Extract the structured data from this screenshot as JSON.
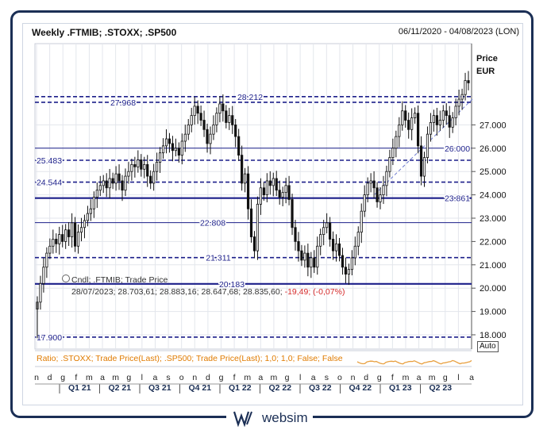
{
  "header": {
    "title": "Weekly .FTMIB; .STOXX; .SP500",
    "date_range": "06/11/2020 - 04/08/2023 (LON)",
    "price_label": "Price",
    "currency_label": "EUR"
  },
  "info": {
    "prefix": "Cndl; .FTMIB; Trade Price",
    "values": "28/07/2023; 28.703,61; 28.883,16; 28.647,68; 28.835,60;",
    "change": "-19,49; (-0,07%)"
  },
  "ratio_label": "Ratio; .STOXX; Trade Price(Last); .SP500; Trade Price(Last); 1,0; 1,0; False; False",
  "auto_label": "Auto",
  "logo_text": "websim",
  "colors": {
    "level_line": "#1c1f8a",
    "candle": "#111111",
    "ratio_line": "#e8a040",
    "frame": "#1b2f55",
    "negative": "#d62b2b"
  },
  "chart_data": {
    "type": "candlestick",
    "title": "Weekly .FTMIB; .STOXX; .SP500",
    "ylabel": "Price EUR",
    "ylim": [
      17.5,
      29.2
    ],
    "y_ticks": [
      "27.000",
      "26.000",
      "25.000",
      "24.000",
      "23.000",
      "22.000",
      "21.000",
      "20.000",
      "19.000",
      "18.000"
    ],
    "month_ticks": [
      "n",
      "d",
      "g",
      "f",
      "m",
      "a",
      "m",
      "g",
      "l",
      "a",
      "s",
      "o",
      "n",
      "d",
      "g",
      "f",
      "m",
      "a",
      "m",
      "g",
      "l",
      "a",
      "s",
      "o",
      "n",
      "d",
      "g",
      "f",
      "m",
      "a",
      "m",
      "g",
      "l",
      "a"
    ],
    "quarter_labels": [
      "Q1 21",
      "Q2 21",
      "Q3 21",
      "Q4 21",
      "Q1 22",
      "Q2 22",
      "Q3 22",
      "Q4 22",
      "Q1 23",
      "Q2 23"
    ],
    "levels": [
      {
        "label": "28.212",
        "value": 28.212,
        "style": "dashed"
      },
      {
        "label": "27.968",
        "value": 27.968,
        "style": "dashed"
      },
      {
        "label": "26.000",
        "value": 26.0,
        "style": "solid"
      },
      {
        "label": "25.483",
        "value": 25.483,
        "style": "dashed"
      },
      {
        "label": "24.544",
        "value": 24.544,
        "style": "dashed"
      },
      {
        "label": "23.861",
        "value": 23.861,
        "style": "solid-thick"
      },
      {
        "label": "22.808",
        "value": 22.808,
        "style": "solid"
      },
      {
        "label": "21.311",
        "value": 21.311,
        "style": "dashed"
      },
      {
        "label": "20.183",
        "value": 20.183,
        "style": "solid-thick"
      },
      {
        "label": "17.900",
        "value": 17.9,
        "style": "dashed"
      }
    ],
    "last_close": 28.8356,
    "weekly_close": [
      19.4,
      20.2,
      20.9,
      21.5,
      21.8,
      22.1,
      21.9,
      22.3,
      22.0,
      22.5,
      22.2,
      22.8,
      21.8,
      22.4,
      22.6,
      22.9,
      23.2,
      23.4,
      23.9,
      24.2,
      24.4,
      24.6,
      24.3,
      24.7,
      24.5,
      24.9,
      24.6,
      24.2,
      24.8,
      25.0,
      25.3,
      25.2,
      25.5,
      25.1,
      25.3,
      24.8,
      24.5,
      25.0,
      25.4,
      25.8,
      26.1,
      26.4,
      26.2,
      25.9,
      26.0,
      25.7,
      26.3,
      26.6,
      27.0,
      27.4,
      27.8,
      27.5,
      27.2,
      26.8,
      26.2,
      26.6,
      27.0,
      27.5,
      27.9,
      27.6,
      27.1,
      27.4,
      27.0,
      26.5,
      25.7,
      24.5,
      24.9,
      23.4,
      22.2,
      21.6,
      23.6,
      24.3,
      24.0,
      24.6,
      24.4,
      24.7,
      24.2,
      23.9,
      24.1,
      24.4,
      23.8,
      22.6,
      22.0,
      21.6,
      21.2,
      21.5,
      20.9,
      21.3,
      20.9,
      21.8,
      22.3,
      22.6,
      22.8,
      22.1,
      21.6,
      21.9,
      21.4,
      20.9,
      20.6,
      20.8,
      21.3,
      21.8,
      22.4,
      23.3,
      24.0,
      24.5,
      24.6,
      24.3,
      23.7,
      24.0,
      24.4,
      25.0,
      25.6,
      26.0,
      26.5,
      27.0,
      27.6,
      27.2,
      26.8,
      27.3,
      27.5,
      26.1,
      24.8,
      25.6,
      26.6,
      27.1,
      27.4,
      27.0,
      27.2,
      27.6,
      27.4,
      26.9,
      27.3,
      27.8,
      28.1,
      28.3,
      28.9,
      28.8
    ],
    "ratio_series_name": "Ratio; .STOXX; Trade Price(Last); .SP500; Trade Price(Last); 1,0; 1,0; False; False"
  }
}
